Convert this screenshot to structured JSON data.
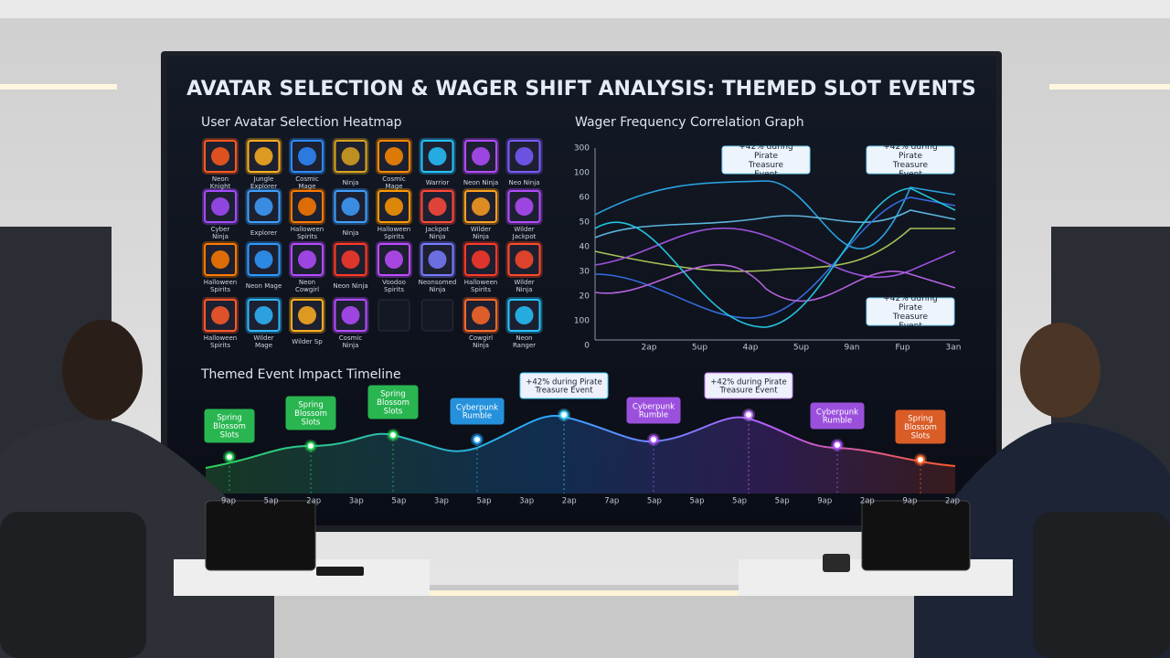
{
  "screen": {
    "title": "AVATAR SELECTION & WAGER SHIFT ANALYSIS: THEMED SLOT EVENTS",
    "heatmap": {
      "title": "User Avatar Selection Heatmap",
      "rows": [
        [
          {
            "label": "Neon Knight",
            "color": "#ff5a1f"
          },
          {
            "label": "Jungle Explorer",
            "color": "#ffb020"
          },
          {
            "label": "Cosmic Mage",
            "color": "#2f8bff"
          },
          {
            "label": "Ninja",
            "color": "#d9a520"
          },
          {
            "label": "Cosmic Mage",
            "color": "#ff8a00"
          },
          {
            "label": "Warrior",
            "color": "#27c4ff"
          },
          {
            "label": "Neon Ninja",
            "color": "#b44cff"
          },
          {
            "label": "Neo Ninja",
            "color": "#7a5cff"
          }
        ],
        [
          {
            "label": "Cyber Ninja",
            "color": "#a54cff"
          },
          {
            "label": "Explorer",
            "color": "#3fa0ff"
          },
          {
            "label": "Halloween Spirits",
            "color": "#ff7a00"
          },
          {
            "label": "Ninja",
            "color": "#3fa0ff"
          },
          {
            "label": "Halloween Spirits",
            "color": "#ff9a00"
          },
          {
            "label": "Jackpot Ninja",
            "color": "#ff4a3a"
          },
          {
            "label": "Wilder Ninja",
            "color": "#ffa020"
          },
          {
            "label": "Wilder Jackpot",
            "color": "#b44cff"
          }
        ],
        [
          {
            "label": "Halloween Spirits",
            "color": "#ff7a00"
          },
          {
            "label": "Neon Mage",
            "color": "#2f9bff"
          },
          {
            "label": "Neon Cowgirl",
            "color": "#b44cff"
          },
          {
            "label": "Neon Ninja",
            "color": "#ff3a2a"
          },
          {
            "label": "Voodoo Spirits",
            "color": "#c04cff"
          },
          {
            "label": "Neonsomed Ninja",
            "color": "#7a7cff"
          },
          {
            "label": "Halloween Spirits",
            "color": "#ff3a2a"
          },
          {
            "label": "Wilder Ninja",
            "color": "#ff4a2a"
          }
        ],
        [
          {
            "label": "Halloween Spirits",
            "color": "#ff5a2a"
          },
          {
            "label": "Wilder Mage",
            "color": "#2fb8ff"
          },
          {
            "label": "Wilder Sp",
            "color": "#ffb020"
          },
          {
            "label": "Cosmic Ninja",
            "color": "#b44cff"
          },
          null,
          null,
          {
            "label": "Cowgirl Ninja",
            "color": "#ff6a2a"
          },
          {
            "label": "Neon Ranger",
            "color": "#27c4ff"
          }
        ]
      ]
    },
    "correlation": {
      "title": "Wager Frequency Correlation Graph",
      "y_labels": [
        "300",
        "100",
        "60",
        "50",
        "40",
        "30",
        "20",
        "100",
        "0"
      ],
      "x_labels": [
        "2ap",
        "5up",
        "4ap",
        "5up",
        "9an",
        "Fup",
        "3an"
      ],
      "callouts": [
        "+42% during Pirate Treasure Event",
        "+42% during Pirate Treasure Event",
        "+42% during Pirate Treasure Event"
      ]
    },
    "timeline": {
      "title": "Themed Event Impact Timeline",
      "events": [
        {
          "label": "Spring Blossom Slots",
          "color": "#2fd35a"
        },
        {
          "label": "Spring Blossom Slots",
          "color": "#2fd35a"
        },
        {
          "label": "Spring Blossom Slots",
          "color": "#2fd35a"
        },
        {
          "label": "Cyberpunk Rumble",
          "color": "#2aa8ff"
        },
        {
          "label": "+42% during Pirate Treasure Event",
          "color": "#3fd0ff"
        },
        {
          "label": "Cyberpunk Rumble",
          "color": "#b45cff"
        },
        {
          "label": "+42% during Pirate Treasure Event",
          "color": "#c47cff"
        },
        {
          "label": "Cyberpunk Rumble",
          "color": "#b45cff"
        },
        {
          "label": "Spring Blossom Slots",
          "color": "#ff6a2a"
        }
      ],
      "x_labels": [
        "9ap",
        "5ap",
        "2ap",
        "3ap",
        "5ap",
        "3ap",
        "5ap",
        "3ap",
        "2ap",
        "7ap",
        "5ap",
        "5ap",
        "5ap",
        "5ap",
        "9ap",
        "2ap",
        "9ap",
        "2ap"
      ]
    }
  }
}
